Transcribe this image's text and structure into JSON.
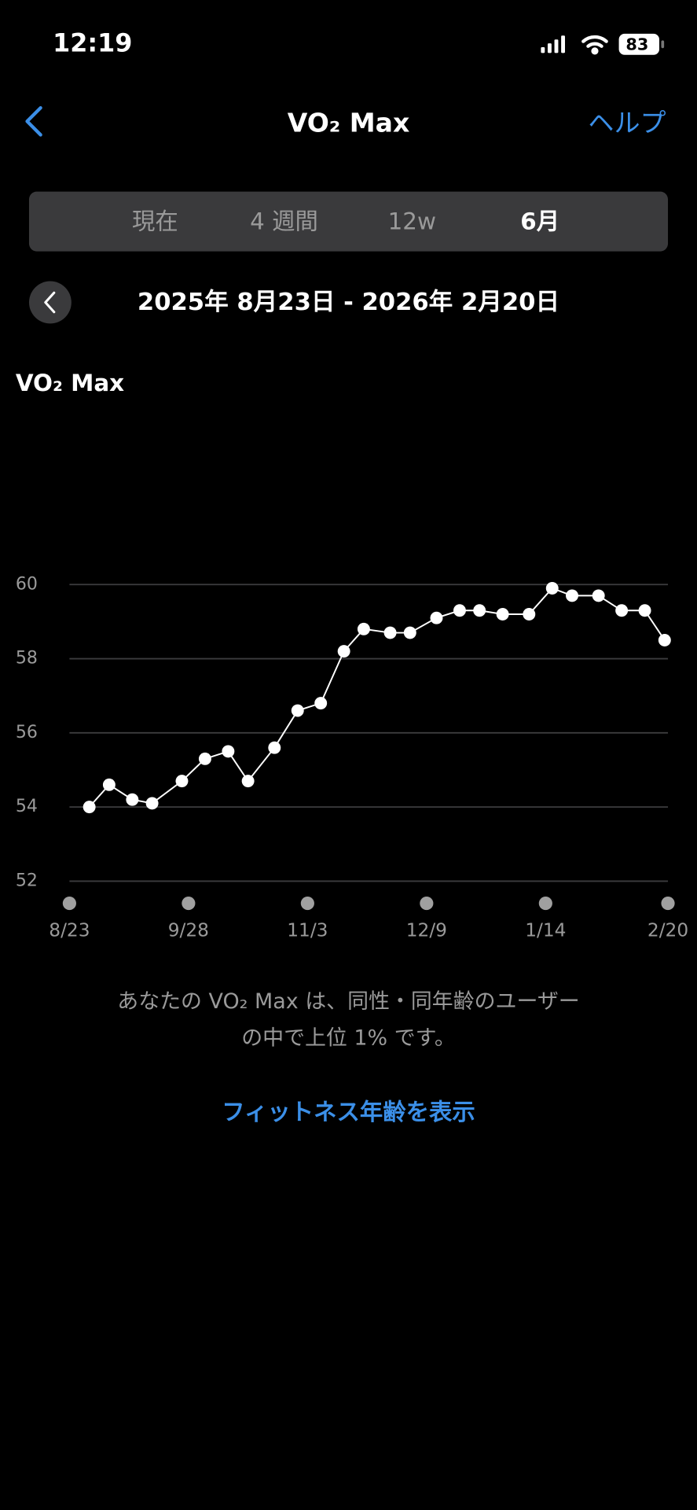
{
  "status_bar": {
    "time": "12:19",
    "battery": "83"
  },
  "nav": {
    "title": "VO₂ Max",
    "help": "ヘルプ"
  },
  "segments": {
    "items": [
      "現在",
      "4 週間",
      "12w",
      "6月"
    ],
    "selected": 3
  },
  "date_range": "2025年 8月23日 - 2026年 2月20日",
  "chart_data": {
    "type": "line",
    "title": "VO₂ Max",
    "x": [
      "8/29",
      "9/4",
      "9/11",
      "9/17",
      "9/26",
      "10/3",
      "10/10",
      "10/16",
      "10/24",
      "10/31",
      "11/7",
      "11/14",
      "11/20",
      "11/28",
      "12/4",
      "12/12",
      "12/19",
      "12/25",
      "1/1",
      "1/9",
      "1/16",
      "1/22",
      "1/30",
      "2/6",
      "2/13",
      "2/19"
    ],
    "values": [
      54.0,
      54.6,
      54.2,
      54.1,
      54.7,
      55.3,
      55.5,
      54.7,
      55.6,
      56.6,
      56.8,
      58.2,
      58.8,
      58.7,
      58.7,
      59.1,
      59.3,
      59.3,
      59.2,
      59.2,
      59.9,
      59.7,
      59.7,
      59.3,
      59.3,
      58.5
    ],
    "color": "#ffffff",
    "xlim": [
      "8/23",
      "2/20"
    ],
    "xticks": [
      "8/23",
      "9/28",
      "11/3",
      "12/9",
      "1/14",
      "2/20"
    ],
    "ylim": [
      52,
      60
    ],
    "yticks": [
      52,
      54,
      56,
      58,
      60
    ],
    "grid": true
  },
  "footer": {
    "lines": [
      "あなたの VO₂ Max は、同性・同年齢のユーザー",
      "の中で上位 1% です。"
    ],
    "link": "フィットネス年齢を表示"
  }
}
